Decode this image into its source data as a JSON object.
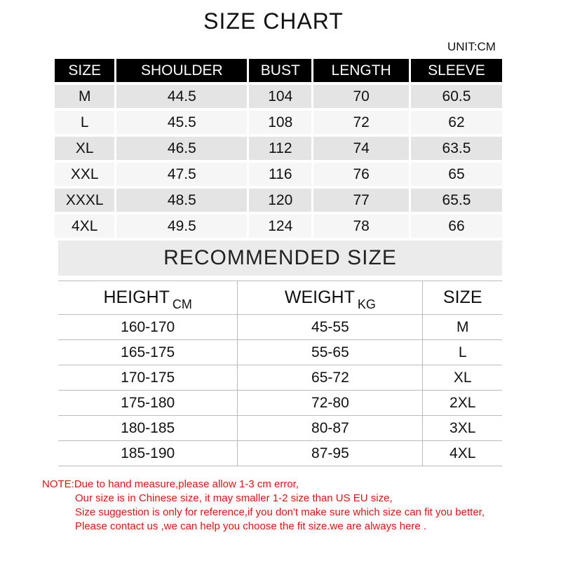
{
  "title": "SIZE CHART",
  "unit": "UNIT:CM",
  "size_table": {
    "headers": [
      "SIZE",
      "SHOULDER",
      "BUST",
      "LENGTH",
      "SLEEVE"
    ],
    "rows": [
      [
        "M",
        "44.5",
        "104",
        "70",
        "60.5"
      ],
      [
        "L",
        "45.5",
        "108",
        "72",
        "62"
      ],
      [
        "XL",
        "46.5",
        "112",
        "74",
        "63.5"
      ],
      [
        "XXL",
        "47.5",
        "116",
        "76",
        "65"
      ],
      [
        "XXXL",
        "48.5",
        "120",
        "77",
        "65.5"
      ],
      [
        "4XL",
        "49.5",
        "124",
        "78",
        "66"
      ]
    ]
  },
  "recommended": {
    "title": "RECOMMENDED SIZE",
    "headers": [
      {
        "label": "HEIGHT",
        "unit": "CM"
      },
      {
        "label": "WEIGHT",
        "unit": "KG"
      },
      {
        "label": "SIZE",
        "unit": ""
      }
    ],
    "rows": [
      [
        "160-170",
        "45-55",
        "M"
      ],
      [
        "165-175",
        "55-65",
        "L"
      ],
      [
        "170-175",
        "65-72",
        "XL"
      ],
      [
        "175-180",
        "72-80",
        "2XL"
      ],
      [
        "180-185",
        "80-87",
        "3XL"
      ],
      [
        "185-190",
        "87-95",
        "4XL"
      ]
    ]
  },
  "note": [
    "NOTE:Due to hand measure,please allow 1-3 cm error,",
    "Our size is in Chinese size, it may smaller 1-2 size than US EU size,",
    "Size suggestion is only for reference,if you don't make sure which size can fit you better,",
    "Please contact  us ,we can help you choose the fit size.we are  always here ."
  ],
  "colors": {
    "header_bg": "#000000",
    "note_text": "#dd1111",
    "row_alt": "#e4e4e4"
  }
}
